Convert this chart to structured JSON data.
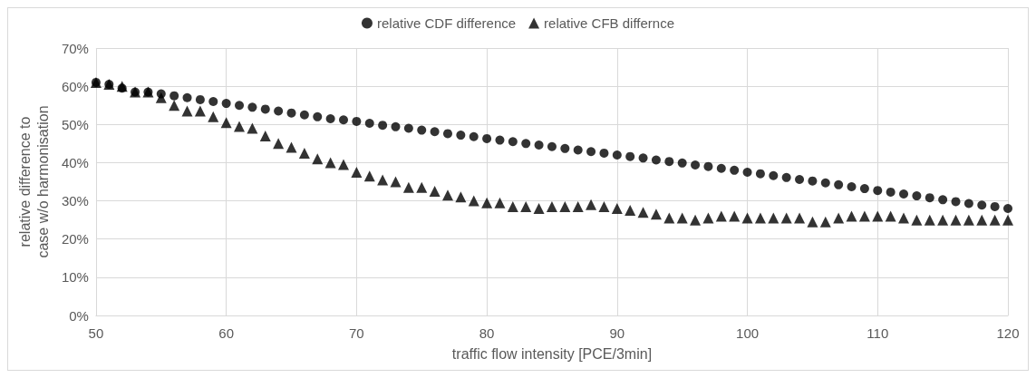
{
  "chart_data": {
    "type": "scatter",
    "xlabel": "traffic flow intensity [PCE/3min]",
    "ylabel": "relative difference to\ncase w/o harmonisation",
    "x": [
      50,
      51,
      52,
      53,
      54,
      55,
      56,
      57,
      58,
      59,
      60,
      61,
      62,
      63,
      64,
      65,
      66,
      67,
      68,
      69,
      70,
      71,
      72,
      73,
      74,
      75,
      76,
      77,
      78,
      79,
      80,
      81,
      82,
      83,
      84,
      85,
      86,
      87,
      88,
      89,
      90,
      91,
      92,
      93,
      94,
      95,
      96,
      97,
      98,
      99,
      100,
      101,
      102,
      103,
      104,
      105,
      106,
      107,
      108,
      109,
      110,
      111,
      112,
      113,
      114,
      115,
      116,
      117,
      118,
      119,
      120
    ],
    "series": [
      {
        "name": "relative CDF difference",
        "color": "#000000",
        "marker": "circle",
        "values": [
          61,
          60.5,
          59.5,
          58.5,
          58.5,
          58,
          57.5,
          57,
          56.5,
          56,
          55.5,
          55,
          54.5,
          54,
          53.5,
          53,
          52.5,
          52,
          51.5,
          51.2,
          50.8,
          50.3,
          49.8,
          49.4,
          49,
          48.5,
          48.1,
          47.6,
          47.2,
          46.8,
          46.3,
          45.9,
          45.5,
          45,
          44.6,
          44.2,
          43.7,
          43.3,
          42.9,
          42.5,
          42,
          41.6,
          41.2,
          40.7,
          40.3,
          39.9,
          39.4,
          39,
          38.5,
          38,
          37.5,
          37.1,
          36.6,
          36.1,
          35.6,
          35.2,
          34.7,
          34.2,
          33.7,
          33.2,
          32.7,
          32.3,
          31.8,
          31.3,
          30.8,
          30.3,
          29.8,
          29.3,
          28.9,
          28.5,
          28
        ]
      },
      {
        "name": "relative CFB differnce",
        "color": "#000000",
        "marker": "triangle",
        "values": [
          61,
          60.5,
          60,
          58.5,
          58.5,
          57,
          55,
          53.5,
          53.5,
          52,
          50.5,
          49.5,
          49,
          47,
          45,
          44,
          42.5,
          41,
          40,
          39.5,
          37.5,
          36.5,
          35.5,
          35,
          33.5,
          33.5,
          32.5,
          31.5,
          31,
          30,
          29.5,
          29.5,
          28.5,
          28.5,
          28,
          28.5,
          28.5,
          28.5,
          29,
          28.5,
          28,
          27.5,
          27,
          26.5,
          25.5,
          25.5,
          25,
          25.5,
          26,
          26,
          25.5,
          25.5,
          25.5,
          25.5,
          25.5,
          24.5,
          24.5,
          25.5,
          26,
          26,
          26,
          26,
          25.5,
          25,
          25,
          25,
          25,
          25,
          25,
          25,
          25
        ]
      }
    ],
    "xlim": [
      50,
      120
    ],
    "xticks": [
      50,
      60,
      70,
      80,
      90,
      100,
      110,
      120
    ],
    "ylim": [
      0,
      70
    ],
    "yticks": [
      {
        "value": 0,
        "label": "0%"
      },
      {
        "value": 10,
        "label": "10%"
      },
      {
        "value": 20,
        "label": "20%"
      },
      {
        "value": 30,
        "label": "30%"
      },
      {
        "value": 40,
        "label": "40%"
      },
      {
        "value": 50,
        "label": "50%"
      },
      {
        "value": 60,
        "label": "60%"
      },
      {
        "value": 70,
        "label": "70%"
      }
    ],
    "grid": true,
    "legend": "top"
  }
}
